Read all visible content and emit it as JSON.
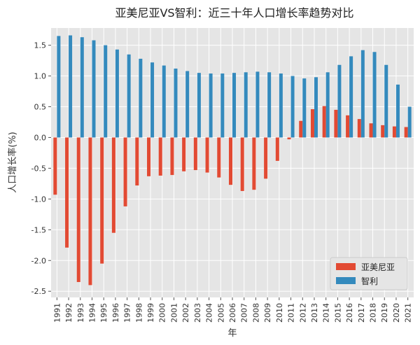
{
  "chart_data": {
    "type": "bar",
    "title": "亚美尼亚VS智利：近三十年人口增长率趋势对比",
    "xlabel": "年",
    "ylabel": "人口增长率(%)",
    "ylim": [
      -2.6,
      1.78
    ],
    "yticks": [
      "-2.5",
      "-2.0",
      "-1.5",
      "-1.0",
      "-0.5",
      "0.0",
      "0.5",
      "1.0",
      "1.5"
    ],
    "ytick_values": [
      -2.5,
      -2.0,
      -1.5,
      -1.0,
      -0.5,
      0.0,
      0.5,
      1.0,
      1.5
    ],
    "grid": true,
    "legend_position": "bottom-right",
    "categories": [
      "1991",
      "1992",
      "1993",
      "1994",
      "1995",
      "1996",
      "1997",
      "1998",
      "1999",
      "2000",
      "2001",
      "2002",
      "2003",
      "2004",
      "2005",
      "2006",
      "2007",
      "2008",
      "2009",
      "2010",
      "2011",
      "2012",
      "2013",
      "2014",
      "2015",
      "2016",
      "2017",
      "2018",
      "2019",
      "2020",
      "2021"
    ],
    "series": [
      {
        "name": "亚美尼亚",
        "color": "#e24a33",
        "values": [
          -0.93,
          -1.79,
          -2.35,
          -2.4,
          -2.05,
          -1.55,
          -1.12,
          -0.78,
          -0.63,
          -0.62,
          -0.61,
          -0.55,
          -0.53,
          -0.57,
          -0.65,
          -0.77,
          -0.87,
          -0.85,
          -0.67,
          -0.38,
          -0.03,
          0.27,
          0.46,
          0.51,
          0.45,
          0.36,
          0.3,
          0.23,
          0.2,
          0.18,
          0.17
        ]
      },
      {
        "name": "智利",
        "color": "#348abd",
        "values": [
          1.65,
          1.66,
          1.63,
          1.58,
          1.5,
          1.43,
          1.35,
          1.28,
          1.22,
          1.17,
          1.12,
          1.08,
          1.05,
          1.04,
          1.04,
          1.05,
          1.06,
          1.07,
          1.06,
          1.04,
          1.0,
          0.96,
          0.98,
          1.06,
          1.18,
          1.32,
          1.42,
          1.39,
          1.18,
          0.86,
          0.5
        ]
      }
    ]
  }
}
